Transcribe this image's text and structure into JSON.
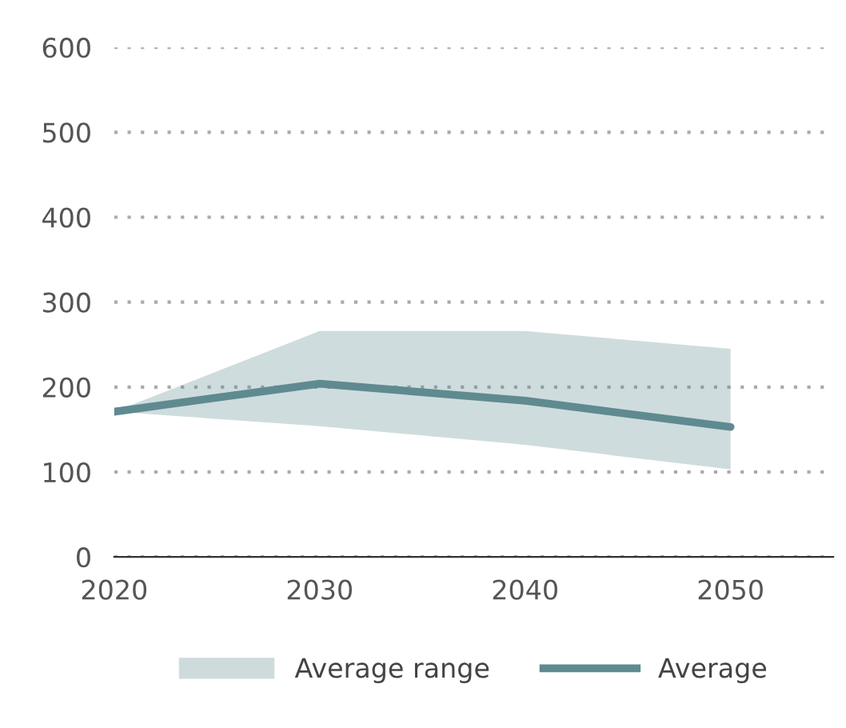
{
  "chart_data": {
    "type": "line",
    "x": [
      2020,
      2030,
      2040,
      2050
    ],
    "series": [
      {
        "name": "Average",
        "color": "#5f8a90",
        "values": [
          171,
          204,
          184,
          153
        ],
        "lower": [
          171,
          154,
          132,
          103
        ],
        "upper": [
          171,
          266,
          266,
          245
        ]
      }
    ],
    "annotations": [
      "Average range"
    ],
    "xlim": [
      2020,
      2055
    ],
    "xticks": [
      2020,
      2030,
      2040,
      2050
    ],
    "ylim": [
      0,
      600
    ],
    "yticks": [
      0,
      100,
      200,
      300,
      400,
      500,
      600
    ],
    "grid": "y",
    "legend": "bottom",
    "line_style": "solid",
    "marker": "none"
  }
}
